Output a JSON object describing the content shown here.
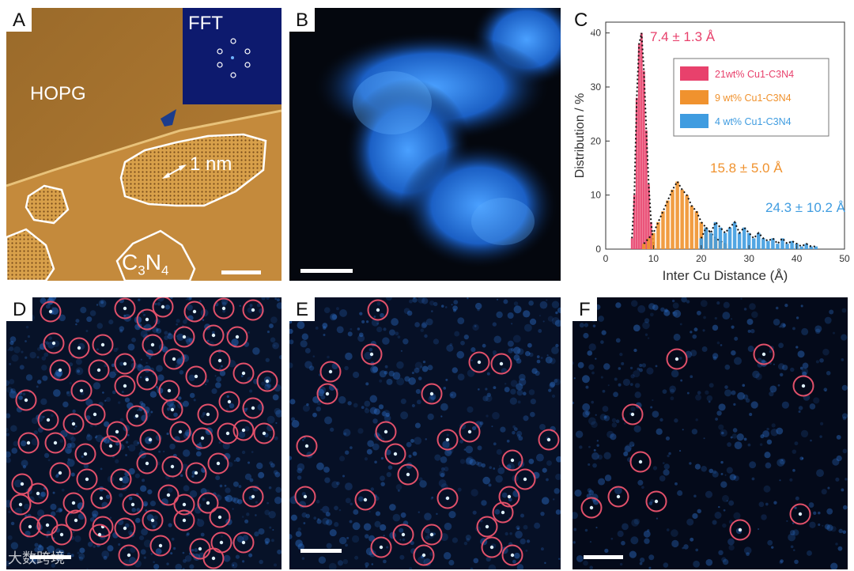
{
  "panels": {
    "A": {
      "letter": "A",
      "label_hopg": "HOPG",
      "label_fft": "FFT",
      "label_scale": "1 nm",
      "label_c3n4_main": "C",
      "label_c3n4_sub1": "3",
      "label_c3n4_n": "N",
      "label_c3n4_sub2": "4"
    },
    "B": {
      "letter": "B"
    },
    "C": {
      "letter": "C"
    },
    "D": {
      "letter": "D"
    },
    "E": {
      "letter": "E"
    },
    "F": {
      "letter": "F"
    }
  },
  "watermark": "大数跨境",
  "colors": {
    "pink": "#e8416c",
    "orange": "#f0922e",
    "blue": "#3f9ce0",
    "circle": "#e2506a"
  },
  "chart_data": {
    "type": "bar",
    "xlabel": "Inter Cu Distance (Å)",
    "ylabel": "Distribution / %",
    "xlim": [
      0,
      50
    ],
    "ylim": [
      0,
      42
    ],
    "xticks": [
      0,
      10,
      20,
      30,
      40,
      50
    ],
    "yticks": [
      0,
      10,
      20,
      30,
      40
    ],
    "legend_position": "top-right",
    "series": [
      {
        "name": "21wt% Cu1-C3N4",
        "annotation": "7.4 ± 1.3 Å",
        "color": "#e8416c",
        "x": [
          5.5,
          6.0,
          6.5,
          7.0,
          7.5,
          8.0,
          8.5,
          9.0,
          9.5,
          10.0
        ],
        "values": [
          2,
          10,
          28,
          38,
          40,
          33,
          22,
          12,
          5,
          1
        ]
      },
      {
        "name": "9 wt% Cu1-C3N4",
        "annotation": "15.8 ± 5.0 Å",
        "color": "#f0922e",
        "x": [
          8,
          9,
          10,
          11,
          12,
          13,
          14,
          15,
          16,
          17,
          18,
          19,
          20,
          21,
          22,
          23,
          24,
          25
        ],
        "values": [
          1,
          2,
          3,
          5,
          7,
          9,
          11,
          12.5,
          11,
          10,
          8,
          7,
          5,
          4,
          3,
          2,
          1.5,
          1
        ]
      },
      {
        "name": "4 wt% Cu1-C3N4",
        "annotation": "24.3 ± 10.2 Å",
        "color": "#3f9ce0",
        "x": [
          20,
          21,
          22,
          23,
          24,
          25,
          26,
          27,
          28,
          29,
          30,
          31,
          32,
          33,
          34,
          35,
          36,
          37,
          38,
          39,
          40,
          41,
          42,
          43,
          44
        ],
        "values": [
          2,
          4,
          3,
          5,
          4,
          3,
          4,
          5,
          3,
          4,
          3,
          2,
          3,
          2,
          1.5,
          2,
          1,
          2,
          1,
          1.5,
          1,
          0.5,
          1,
          0.5,
          0.5
        ]
      }
    ]
  }
}
